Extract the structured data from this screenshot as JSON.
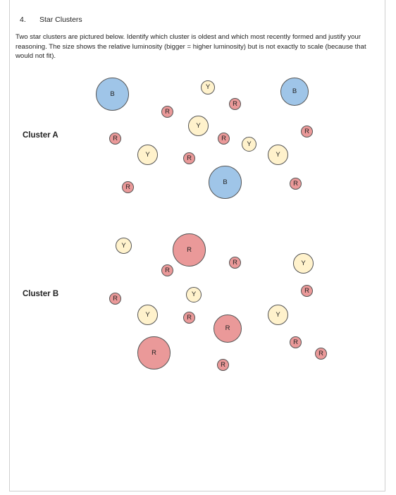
{
  "question": {
    "number": "4.",
    "title": "Star Clusters",
    "instructions": "Two star clusters are pictured below. Identify which cluster is oldest and which most recently formed and justify your reasoning. The size shows the relative luminosity (bigger = higher luminosity) but is not exactly to scale (because that would not fit)."
  },
  "cluster_a": {
    "label": "Cluster A",
    "stars": [
      "B",
      "Y",
      "B",
      "R",
      "R",
      "Y",
      "R",
      "R",
      "Y",
      "R",
      "Y",
      "R",
      "R",
      "Y",
      "R",
      "R",
      "B",
      "R"
    ]
  },
  "cluster_b": {
    "label": "Cluster B",
    "stars": [
      "Y",
      "R",
      "R",
      "Y",
      "R",
      "R",
      "R",
      "Y",
      "Y",
      "R",
      "Y",
      "R",
      "R",
      "R",
      "R",
      "R",
      "R"
    ]
  },
  "colors": {
    "R": "#ea9999",
    "Y": "#fff2cc",
    "B": "#9fc5e8"
  }
}
